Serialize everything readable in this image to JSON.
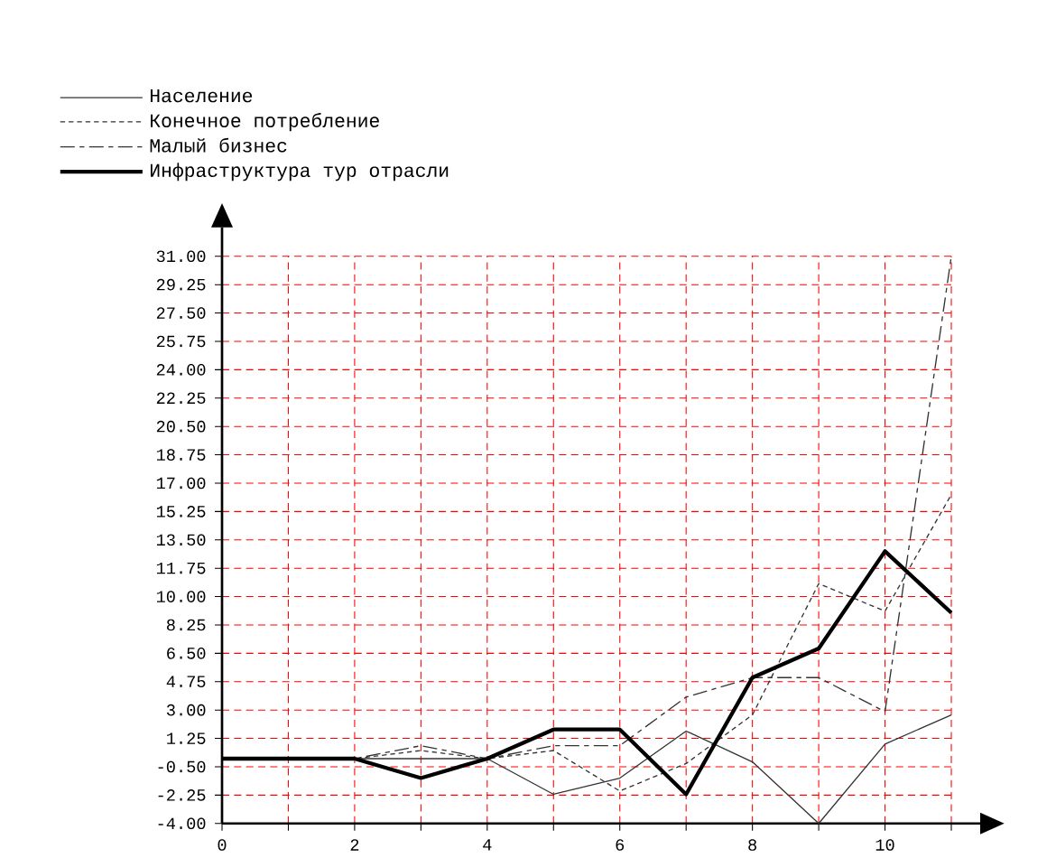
{
  "chart_data": {
    "type": "line",
    "x": [
      0,
      1,
      2,
      3,
      4,
      5,
      6,
      7,
      8,
      9,
      10,
      11
    ],
    "series": [
      {
        "name": "Население",
        "color": "#333333",
        "line_style": "solid",
        "values": [
          0,
          0,
          0,
          0,
          0,
          -2.2,
          -1.2,
          1.7,
          -0.2,
          -4,
          0.9,
          2.7
        ]
      },
      {
        "name": "Конечное потребление",
        "color": "#333333",
        "line_style": "dotted",
        "values": [
          0,
          0,
          0,
          0.5,
          0,
          0.5,
          -2.0,
          -0.3,
          2.7,
          10.8,
          9.1,
          16.3
        ]
      },
      {
        "name": "Малый бизнес",
        "color": "#333333",
        "line_style": "dashed",
        "values": [
          0,
          0,
          0,
          0.8,
          0,
          0.8,
          0.8,
          3.8,
          5.0,
          5.0,
          2.9,
          31
        ]
      },
      {
        "name": "Инфраструктура тур отрасли",
        "color": "#000000",
        "line_style": "solid",
        "values": [
          0,
          0,
          0,
          -1.2,
          0,
          1.8,
          1.8,
          -2.2,
          5.0,
          6.8,
          12.8,
          9.0
        ]
      }
    ],
    "xlim": [
      0,
      11
    ],
    "xticks": [
      0,
      {
        "value": 1,
        "label": null
      },
      2,
      {
        "value": 3,
        "label": null
      },
      4,
      {
        "value": 5,
        "label": null
      },
      6,
      {
        "value": 7,
        "label": null
      },
      8,
      {
        "value": 9,
        "label": null
      },
      10,
      {
        "value": 11,
        "label": null
      }
    ],
    "ylim": [
      -4,
      31
    ],
    "yticks": [
      {
        "value": -4,
        "label": "-4.00"
      },
      {
        "value": -2.25,
        "label": "-2.25"
      },
      {
        "value": -0.5,
        "label": "-0.50"
      },
      {
        "value": 1.25,
        "label": "1.25"
      },
      {
        "value": 3,
        "label": "3.00"
      },
      {
        "value": 4.75,
        "label": "4.75"
      },
      {
        "value": 6.5,
        "label": "6.50"
      },
      {
        "value": 8.25,
        "label": "8.25"
      },
      {
        "value": 10,
        "label": "10.00"
      },
      {
        "value": 11.75,
        "label": "11.75"
      },
      {
        "value": 13.5,
        "label": "13.50"
      },
      {
        "value": 15.25,
        "label": "15.25"
      },
      {
        "value": 17,
        "label": "17.00"
      },
      {
        "value": 18.75,
        "label": "18.75"
      },
      {
        "value": 20.5,
        "label": "20.50"
      },
      {
        "value": 22.25,
        "label": "22.25"
      },
      {
        "value": 24,
        "label": "24.00"
      },
      {
        "value": 25.75,
        "label": "25.75"
      },
      {
        "value": 27.5,
        "label": "27.50"
      },
      {
        "value": 29.25,
        "label": "29.25"
      },
      {
        "value": 31,
        "label": "31.00"
      }
    ],
    "grid": true,
    "legend": "top left",
    "marker": "none"
  }
}
